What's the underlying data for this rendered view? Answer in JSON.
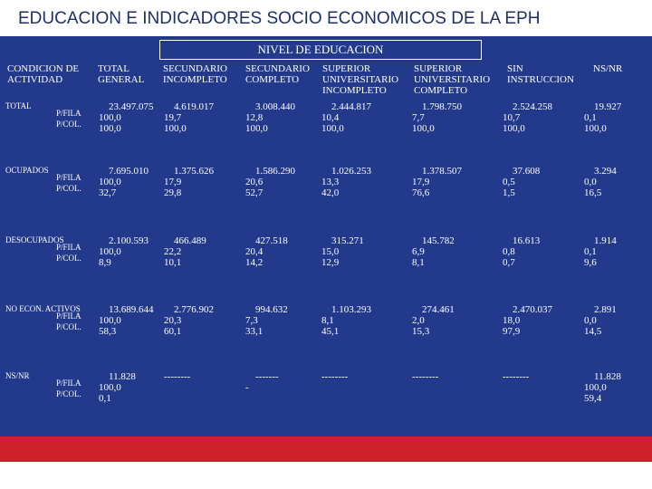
{
  "header": {
    "title": "EDUCACION E INDICADORES SOCIO ECONOMICOS DE LA  EPH"
  },
  "table": {
    "group_header": "NIVEL DE EDUCACION",
    "columns": [
      "CONDICION DE ACTIVIDAD",
      "TOTAL GENERAL",
      "SECUNDARIO INCOMPLETO",
      "SECUNDARIO COMPLETO",
      "SUPERIOR UNIVERSITARIO INCOMPLETO",
      "SUPERIOR UNIVERSITARIO COMPLETO",
      "SIN INSTRUCCION",
      "NS/NR"
    ],
    "rows": [
      {
        "label": "TOTAL",
        "sublabels": [
          "P/FILA",
          "P/COL."
        ],
        "cells": [
          [
            "23.497.075",
            "100,0",
            "100,0"
          ],
          [
            "4.619.017",
            "19,7",
            "100,0"
          ],
          [
            "3.008.440",
            "12,8",
            "100,0"
          ],
          [
            "2.444.817",
            "10,4",
            "100,0"
          ],
          [
            "1.798.750",
            "7,7",
            "100,0"
          ],
          [
            "2.524.258",
            "10,7",
            "100,0"
          ],
          [
            "19.927",
            "0,1",
            "100,0"
          ]
        ]
      },
      {
        "label": "OCUPADOS",
        "sublabels": [
          "P/FILA",
          "P/COL."
        ],
        "cells": [
          [
            "7.695.010",
            "100,0",
            "32,7"
          ],
          [
            "1.375.626",
            "17,9",
            "29,8"
          ],
          [
            "1.586.290",
            "20,6",
            "52,7"
          ],
          [
            "1.026.253",
            "13,3",
            "42,0"
          ],
          [
            "1.378.507",
            "17,9",
            "76,6"
          ],
          [
            "37.608",
            "0,5",
            "1,5"
          ],
          [
            "3.294",
            "0,0",
            "16,5"
          ]
        ]
      },
      {
        "label": "DESOCUPADOS",
        "sublabels": [
          "P/FILA",
          "P/COL."
        ],
        "cells": [
          [
            "2.100.593",
            "100,0",
            "8,9"
          ],
          [
            "466.489",
            "22,2",
            "10,1"
          ],
          [
            "427.518",
            "20,4",
            "14,2"
          ],
          [
            "315.271",
            "15,0",
            "12,9"
          ],
          [
            "145.782",
            "6,9",
            "8,1"
          ],
          [
            "16.613",
            "0,8",
            "0,7"
          ],
          [
            "1.914",
            "0,1",
            "9,6"
          ]
        ]
      },
      {
        "label": "NO ECON. ACTIVOS",
        "sublabels": [
          "P/FILA",
          "P/COL."
        ],
        "cells": [
          [
            "13.689.644",
            "100,0",
            "58,3"
          ],
          [
            "2.776.902",
            "20,3",
            "60,1"
          ],
          [
            "994.632",
            "7,3",
            "33,1"
          ],
          [
            "1.103.293",
            "8,1",
            "45,1"
          ],
          [
            "274.461",
            "2,0",
            "15,3"
          ],
          [
            "2.470.037",
            "18,0",
            "97,9"
          ],
          [
            "2.891",
            "0,0",
            "14,5"
          ]
        ]
      },
      {
        "label": "NS/NR",
        "sublabels": [
          "P/FILA",
          "P/COL."
        ],
        "cells": [
          [
            "11.828",
            "100,0",
            "0,1"
          ],
          [
            "--------"
          ],
          [
            "-------",
            "-"
          ],
          [
            "--------"
          ],
          [
            "--------"
          ],
          [
            "--------"
          ],
          [
            "11.828",
            "100,0",
            "59,4"
          ]
        ]
      }
    ]
  }
}
